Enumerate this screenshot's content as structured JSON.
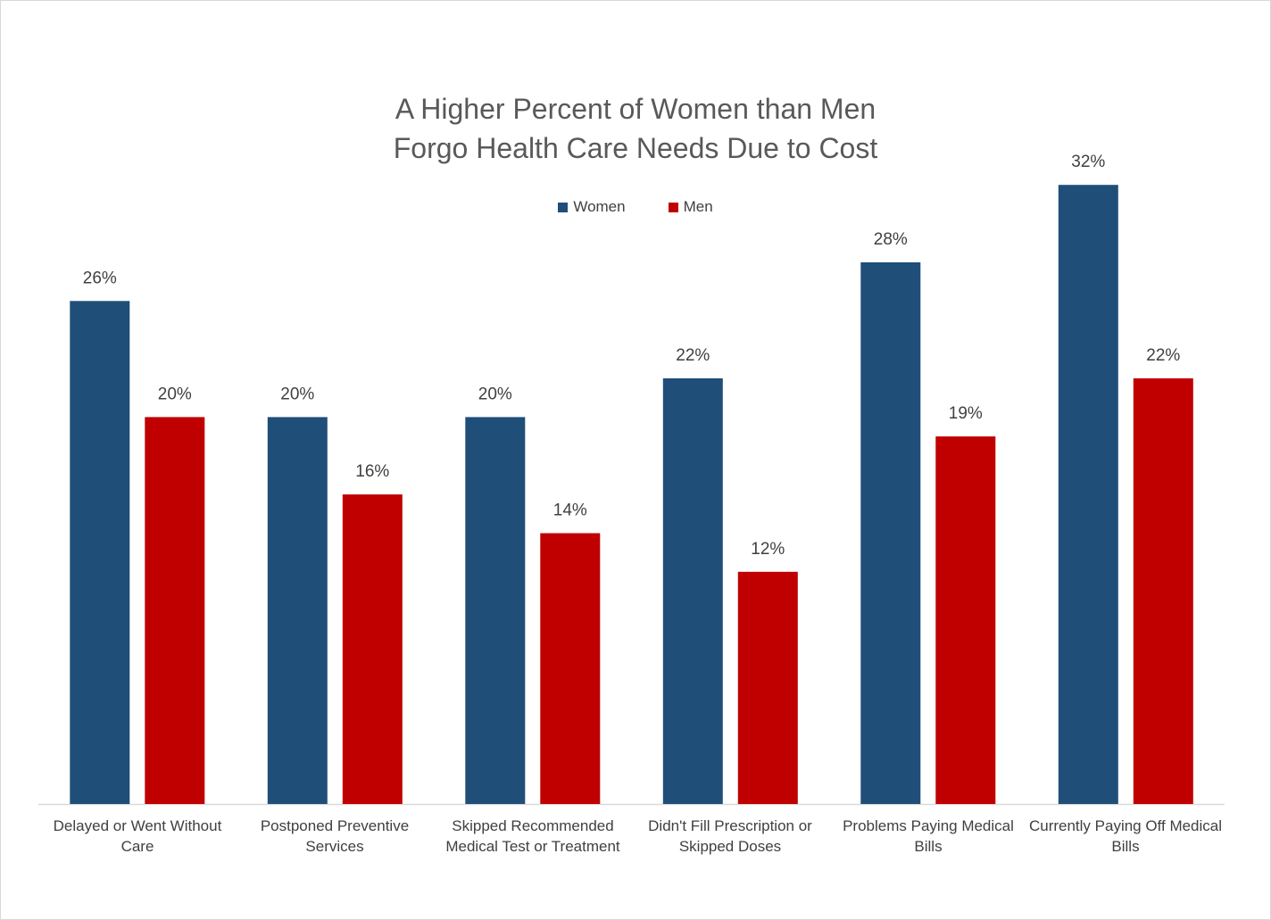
{
  "chart_data": {
    "type": "bar",
    "title": "A Higher Percent of Women than Men\nForgo Health Care Needs Due to Cost",
    "categories": [
      "Delayed or Went Without Care",
      "Postponed Preventive Services",
      "Skipped Recommended Medical Test or Treatment",
      "Didn't Fill Prescription or Skipped Doses",
      "Problems Paying Medical Bills",
      "Currently Paying Off Medical Bills"
    ],
    "series": [
      {
        "name": "Women",
        "color": "#1f4e79",
        "values": [
          26,
          20,
          20,
          22,
          28,
          32
        ],
        "labels": [
          "26%",
          "20%",
          "20%",
          "22%",
          "28%",
          "32%"
        ]
      },
      {
        "name": "Men",
        "color": "#c00000",
        "values": [
          20,
          16,
          14,
          12,
          19,
          22
        ],
        "labels": [
          "20%",
          "16%",
          "14%",
          "12%",
          "19%",
          "22%"
        ]
      }
    ],
    "ylim": [
      0,
      36
    ],
    "grid": false,
    "legend": "top-center"
  }
}
